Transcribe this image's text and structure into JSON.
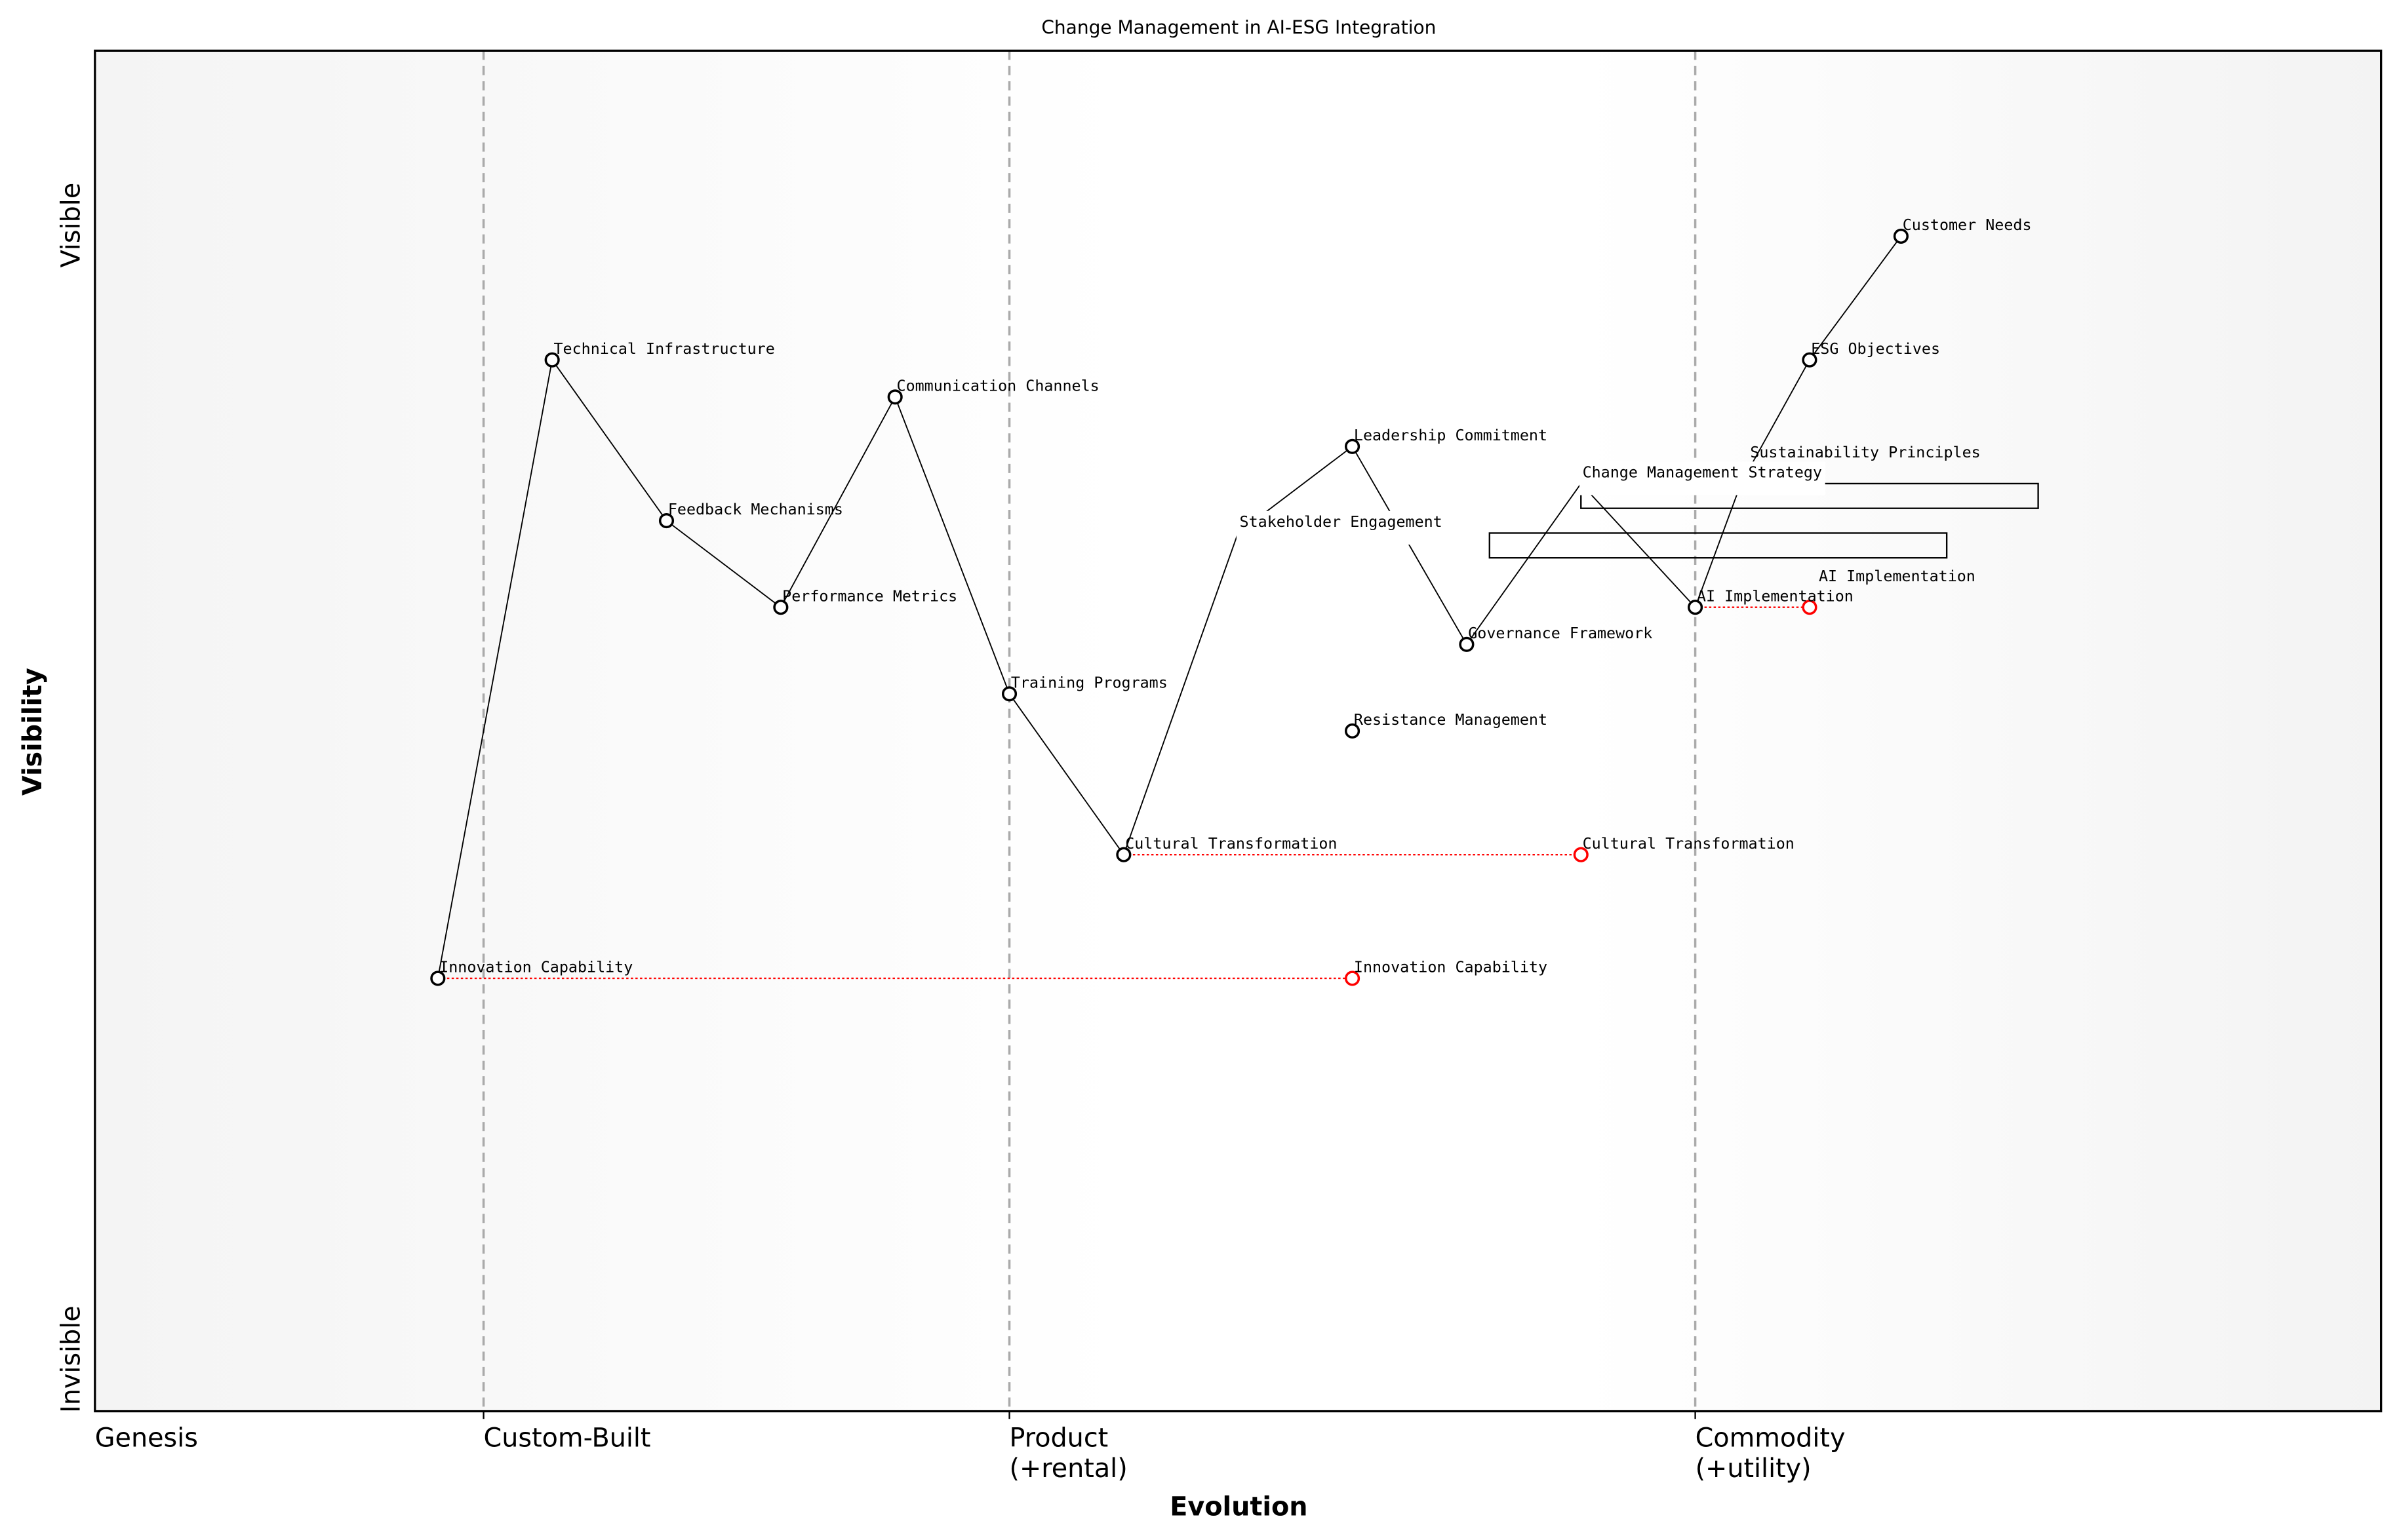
{
  "chart_data": {
    "type": "wardley-map",
    "title": "Change Management in AI-ESG Integration",
    "xlabel": "Evolution",
    "ylabel": "Visibility",
    "xlim": [
      0,
      1
    ],
    "ylim": [
      0,
      1.1
    ],
    "grid": false,
    "y_end_labels": {
      "top": "Visible",
      "bottom": "Invisible"
    },
    "stages": [
      {
        "line1": "Genesis",
        "line2": "",
        "evolution": 0.0,
        "divider": false
      },
      {
        "line1": "Custom-Built",
        "line2": "",
        "evolution": 0.17,
        "divider": true
      },
      {
        "line1": "Product",
        "line2": "(+rental)",
        "evolution": 0.4,
        "divider": true
      },
      {
        "line1": "Commodity",
        "line2": "(+utility)",
        "evolution": 0.7,
        "divider": true
      }
    ],
    "components": [
      {
        "name": "Customer Needs",
        "evolution": 0.79,
        "visibility": 0.95
      },
      {
        "name": "ESG Objectives",
        "evolution": 0.75,
        "visibility": 0.85
      },
      {
        "name": "Sustainability Principles",
        "evolution": 0.72,
        "visibility": 0.75
      },
      {
        "name": "AI Implementation",
        "evolution": 0.7,
        "visibility": 0.65
      },
      {
        "name": "Change Management Strategy",
        "evolution": 0.65,
        "visibility": 0.75,
        "marker_hidden": true
      },
      {
        "name": "Governance Framework",
        "evolution": 0.6,
        "visibility": 0.62
      },
      {
        "name": "Leadership Commitment",
        "evolution": 0.55,
        "visibility": 0.78
      },
      {
        "name": "Stakeholder Engagement",
        "evolution": 0.5,
        "visibility": 0.71,
        "marker_hidden": true
      },
      {
        "name": "Cultural Transformation",
        "evolution": 0.45,
        "visibility": 0.45
      },
      {
        "name": "Training Programs",
        "evolution": 0.4,
        "visibility": 0.58
      },
      {
        "name": "Communication Channels",
        "evolution": 0.35,
        "visibility": 0.82
      },
      {
        "name": "Performance Metrics",
        "evolution": 0.3,
        "visibility": 0.65
      },
      {
        "name": "Feedback Mechanisms",
        "evolution": 0.25,
        "visibility": 0.72
      },
      {
        "name": "Technical Infrastructure",
        "evolution": 0.2,
        "visibility": 0.85
      },
      {
        "name": "Innovation Capability",
        "evolution": 0.15,
        "visibility": 0.35
      },
      {
        "name": "Resistance Management",
        "evolution": 0.55,
        "visibility": 0.55
      }
    ],
    "links": [
      [
        "Customer Needs",
        "ESG Objectives"
      ],
      [
        "ESG Objectives",
        "Sustainability Principles"
      ],
      [
        "Sustainability Principles",
        "AI Implementation"
      ],
      [
        "AI Implementation",
        "Change Management Strategy"
      ],
      [
        "Change Management Strategy",
        "Governance Framework"
      ],
      [
        "Governance Framework",
        "Leadership Commitment"
      ],
      [
        "Leadership Commitment",
        "Stakeholder Engagement"
      ],
      [
        "Stakeholder Engagement",
        "Cultural Transformation"
      ],
      [
        "Cultural Transformation",
        "Training Programs"
      ],
      [
        "Training Programs",
        "Communication Channels"
      ],
      [
        "Communication Channels",
        "Performance Metrics"
      ],
      [
        "Performance Metrics",
        "Feedback Mechanisms"
      ],
      [
        "Feedback Mechanisms",
        "Technical Infrastructure"
      ],
      [
        "Technical Infrastructure",
        "Innovation Capability"
      ]
    ],
    "evolutions": [
      {
        "name": "AI Implementation",
        "from": 0.7,
        "to": 0.75,
        "visibility": 0.65
      },
      {
        "name": "Cultural Transformation",
        "from": 0.45,
        "to": 0.65,
        "visibility": 0.45
      },
      {
        "name": "Innovation Capability",
        "from": 0.15,
        "to": 0.55,
        "visibility": 0.35
      }
    ],
    "pipelines": [
      {
        "start": 0.65,
        "end": 0.85,
        "visibility_top": 0.75,
        "visibility_bottom": 0.73
      },
      {
        "start": 0.61,
        "end": 0.81,
        "visibility_top": 0.71,
        "visibility_bottom": 0.69
      }
    ],
    "colors": {
      "component": "#000000",
      "evolved": "#ff0000",
      "divider": "#aaaaaa",
      "edge_shade": "#f5f5f5",
      "center_shade": "#ffffff"
    }
  }
}
